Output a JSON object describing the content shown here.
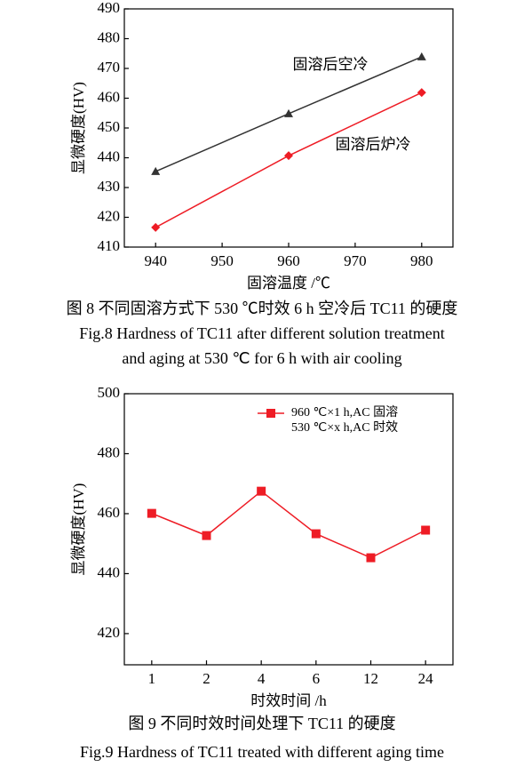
{
  "chart_data": [
    {
      "type": "line",
      "ylabel": "显微硬度(HV)",
      "xlabel": "固溶温度 /℃",
      "x": [
        940,
        960,
        980
      ],
      "xlim": [
        935.3,
        984.7
      ],
      "xticks": [
        940,
        950,
        960,
        970,
        980
      ],
      "ylim": [
        410,
        490
      ],
      "yticks": [
        410,
        420,
        430,
        440,
        450,
        460,
        470,
        480,
        490
      ],
      "series": [
        {
          "name": "固溶后空冷",
          "color": "#333333",
          "marker": "triangle",
          "values": [
            435.4,
            454.8,
            473.9
          ]
        },
        {
          "name": "固溶后炉冷",
          "color": "#ee1c25",
          "marker": "diamond",
          "values": [
            416.6,
            440.7,
            461.9
          ]
        }
      ],
      "caption": [
        "图 8  不同固溶方式下 530 ℃时效 6 h 空冷后 TC11 的硬度",
        "Fig.8  Hardness of TC11 after different solution treatment",
        "and aging at 530 ℃ for 6 h with air cooling"
      ]
    },
    {
      "type": "line",
      "ylabel": "显微硬度(HV)",
      "xlabel": "时效时间 /h",
      "categories": [
        "1",
        "2",
        "4",
        "6",
        "12",
        "24"
      ],
      "ylim": [
        409.6,
        500
      ],
      "yticks": [
        420,
        440,
        460,
        480,
        500
      ],
      "series": [
        {
          "name": "960 ℃×1 h,AC 固溶",
          "legend_note": "530 ℃×x h,AC 时效",
          "color": "#ee1c25",
          "marker": "square",
          "values": [
            460.1,
            452.7,
            467.5,
            453.3,
            445.3,
            454.5
          ]
        }
      ],
      "caption": [
        "图 9  不同时效时间处理下 TC11 的硬度",
        "Fig.9  Hardness of TC11 treated with different aging time"
      ]
    }
  ]
}
